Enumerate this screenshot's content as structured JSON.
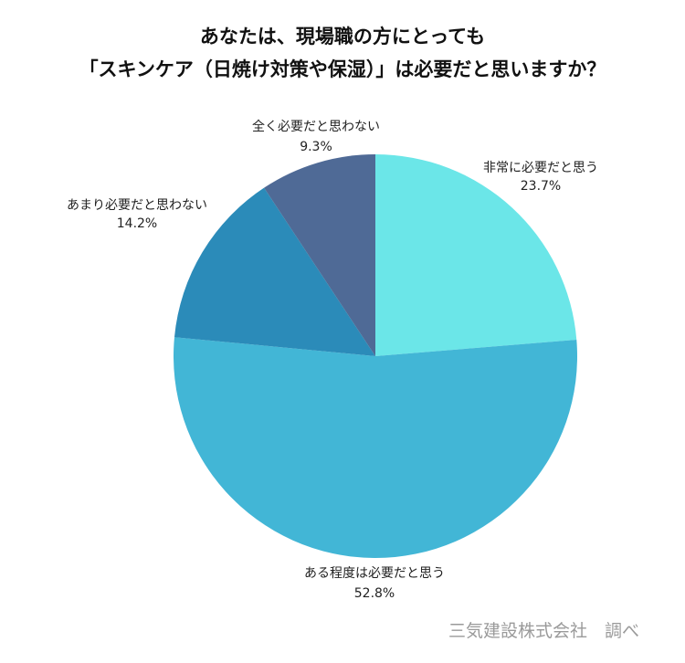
{
  "chart_data": {
    "type": "pie",
    "title_line1": "あなたは、現場職の方にとっても",
    "title_line2": "「スキンケア（日焼け対策や保湿）」は必要だと思いますか？",
    "slices": [
      {
        "label": "非常に必要だと思う",
        "value": 23.7,
        "value_text": "23.7%",
        "color": "#6be6e8"
      },
      {
        "label": "ある程度は必要だと思う",
        "value": 52.8,
        "value_text": "52.8%",
        "color": "#42b6d6"
      },
      {
        "label": "あまり必要だと思わない",
        "value": 14.2,
        "value_text": "14.2%",
        "color": "#2b8bb9"
      },
      {
        "label": "全く必要だと思わない",
        "value": 9.3,
        "value_text": "9.3%",
        "color": "#4f6a96"
      }
    ],
    "start_angle": "12 o'clock",
    "direction": "clockwise"
  },
  "source_text": "三気建設株式会社　調べ"
}
